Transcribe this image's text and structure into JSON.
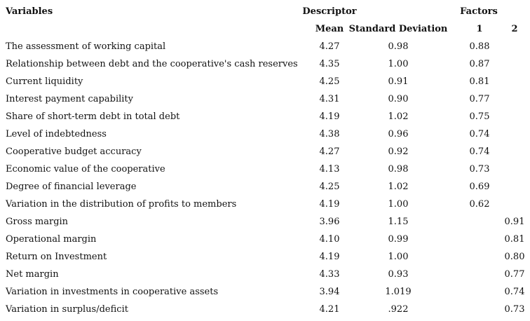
{
  "table": {
    "header": {
      "variables": "Variables",
      "descriptor": "Descriptor",
      "factors": "Factors",
      "columns": [
        "Mean",
        "Standard Deviation",
        "1",
        "2"
      ]
    },
    "rows": [
      [
        "The assessment of working capital",
        "4.27",
        "0.98",
        "0.88",
        null
      ],
      [
        "Relationship between debt and the cooperative's cash reserves",
        "4.35",
        "1.00",
        "0.87",
        null
      ],
      [
        "Current liquidity",
        "4.25",
        "0.91",
        "0.81",
        null
      ],
      [
        "Interest payment capability",
        "4.31",
        "0.90",
        "0.77",
        null
      ],
      [
        "Share of short-term debt in total debt",
        "4.19",
        "1.02",
        "0.75",
        null
      ],
      [
        "Level of indebtedness",
        "4.38",
        "0.96",
        "0.74",
        null
      ],
      [
        "Cooperative budget accuracy",
        "4.27",
        "0.92",
        "0.74",
        null
      ],
      [
        "Economic value of the cooperative",
        "4.13",
        "0.98",
        "0.73",
        null
      ],
      [
        "Degree of financial leverage",
        "4.25",
        "1.02",
        "0.69",
        null
      ],
      [
        "Variation in the distribution of profits to members",
        "4.19",
        "1.00",
        "0.62",
        null
      ],
      [
        "Gross margin",
        "3.96",
        "1.15",
        null,
        "0.91"
      ],
      [
        "Operational margin",
        "4.10",
        "0.99",
        null,
        "0.81"
      ],
      [
        "Return on Investment",
        "4.19",
        "1.00",
        null,
        "0.80"
      ],
      [
        "Net margin",
        "4.33",
        "0.93",
        null,
        "0.77"
      ],
      [
        "Variation in investments in cooperative assets",
        "3.94",
        "1.019",
        null,
        "0.74"
      ],
      [
        "Variation in surplus/deficit",
        "4.21",
        ".922",
        null,
        "0.73"
      ]
    ]
  }
}
